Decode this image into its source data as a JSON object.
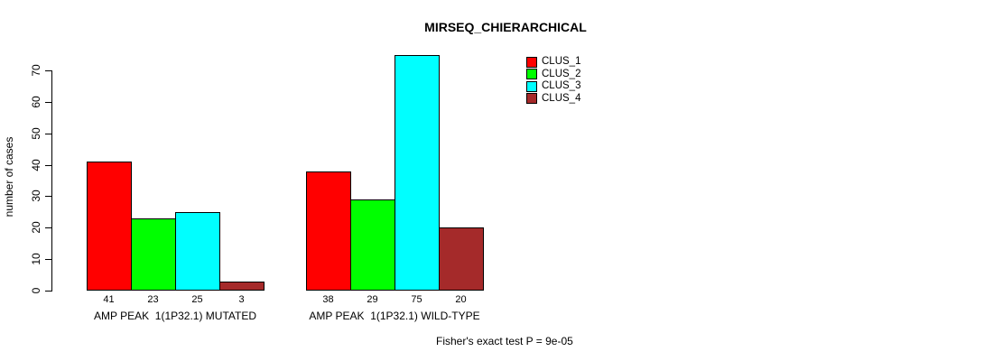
{
  "chart_data": {
    "type": "bar",
    "title": "MIRSEQ_CHIERARCHICAL",
    "xlabel": "",
    "ylabel": "number of cases",
    "ylim": [
      0,
      70
    ],
    "yticks": [
      0,
      10,
      20,
      30,
      40,
      50,
      60,
      70
    ],
    "grid": false,
    "legend_position": "top-right",
    "categories": [
      "AMP PEAK  1(1P32.1) MUTATED",
      "AMP PEAK  1(1P32.1) WILD-TYPE"
    ],
    "series": [
      {
        "name": "CLUS_1",
        "color": "#ff0000",
        "values": [
          41,
          38
        ]
      },
      {
        "name": "CLUS_2",
        "color": "#00ff00",
        "values": [
          23,
          29
        ]
      },
      {
        "name": "CLUS_3",
        "color": "#00ffff",
        "values": [
          25,
          75
        ]
      },
      {
        "name": "CLUS_4",
        "color": "#a52a2a",
        "values": [
          3,
          20
        ]
      }
    ],
    "bar_value_labels": [
      [
        "41",
        "23",
        "25",
        "3"
      ],
      [
        "38",
        "29",
        "75",
        "20"
      ]
    ],
    "annotation": "Fisher's exact test P = 9e-05"
  }
}
